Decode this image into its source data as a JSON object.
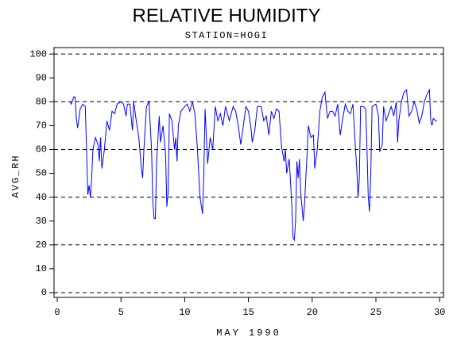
{
  "chart_data": {
    "type": "line",
    "title": "RELATIVE HUMIDITY",
    "subtitle": "STATION=HOGI",
    "y_label": "AVG_RH",
    "x_label": "MAY 1990",
    "xlim": [
      -0.25,
      30.3
    ],
    "ylim": [
      -2,
      102.7
    ],
    "xticks": [
      0,
      5,
      10,
      15,
      20,
      25,
      30
    ],
    "yticks": [
      0,
      10,
      20,
      30,
      40,
      50,
      60,
      70,
      80,
      90,
      100
    ],
    "reference_lines": [
      0,
      20,
      40,
      60,
      80,
      100
    ],
    "series": [
      {
        "color": "#0000ff",
        "x": [
          1.0,
          1.1,
          1.3,
          1.4,
          1.5,
          1.6,
          1.8,
          2.0,
          2.2,
          2.3,
          2.4,
          2.5,
          2.6,
          2.7,
          2.8,
          3.0,
          3.2,
          3.3,
          3.4,
          3.5,
          3.7,
          3.9,
          4.1,
          4.3,
          4.5,
          4.7,
          5.0,
          5.2,
          5.4,
          5.5,
          5.7,
          5.9,
          6.0,
          6.2,
          6.4,
          6.6,
          6.7,
          6.8,
          7.0,
          7.2,
          7.4,
          7.5,
          7.6,
          7.7,
          7.8,
          8.0,
          8.1,
          8.3,
          8.5,
          8.6,
          8.7,
          8.8,
          9.0,
          9.2,
          9.3,
          9.4,
          9.5,
          9.7,
          10.0,
          10.2,
          10.4,
          10.6,
          10.8,
          11.0,
          11.2,
          11.4,
          11.5,
          11.6,
          11.8,
          12.0,
          12.2,
          12.4,
          12.6,
          12.8,
          13.0,
          13.2,
          13.5,
          13.8,
          14.0,
          14.2,
          14.4,
          14.6,
          14.8,
          15.0,
          15.2,
          15.3,
          15.5,
          15.7,
          16.0,
          16.2,
          16.4,
          16.6,
          16.8,
          17.0,
          17.2,
          17.4,
          17.6,
          17.8,
          17.9,
          18.0,
          18.2,
          18.4,
          18.5,
          18.6,
          18.7,
          18.8,
          18.9,
          19.0,
          19.1,
          19.3,
          19.4,
          19.5,
          19.6,
          19.7,
          19.9,
          20.1,
          20.2,
          20.4,
          20.6,
          20.8,
          21.0,
          21.2,
          21.4,
          21.6,
          21.8,
          22.0,
          22.2,
          22.4,
          22.6,
          22.8,
          23.0,
          23.2,
          23.4,
          23.5,
          23.6,
          23.7,
          23.8,
          24.0,
          24.2,
          24.3,
          24.4,
          24.5,
          24.6,
          24.7,
          25.0,
          25.2,
          25.3,
          25.5,
          25.6,
          25.8,
          26.0,
          26.2,
          26.4,
          26.6,
          26.7,
          26.8,
          27.0,
          27.2,
          27.4,
          27.6,
          27.8,
          28.0,
          28.2,
          28.4,
          28.6,
          28.8,
          29.0,
          29.2,
          29.3,
          29.4,
          29.5,
          29.7,
          29.8
        ],
        "values": [
          80,
          79,
          82,
          82,
          73,
          69,
          77,
          79,
          78,
          60,
          41,
          45,
          40,
          48,
          60,
          65,
          62,
          55,
          65,
          52,
          60,
          72,
          68,
          76,
          75,
          79,
          80,
          79,
          74,
          79,
          79,
          68,
          80,
          72,
          65,
          52,
          48,
          60,
          78,
          80,
          60,
          38,
          31,
          31,
          55,
          74,
          63,
          70,
          58,
          36,
          42,
          75,
          72,
          60,
          65,
          55,
          70,
          76,
          78,
          79,
          76,
          80,
          75,
          60,
          40,
          33,
          50,
          77,
          54,
          65,
          60,
          78,
          72,
          75,
          70,
          78,
          72,
          78,
          76,
          70,
          62,
          70,
          78,
          76,
          69,
          63,
          68,
          78,
          78,
          72,
          74,
          66,
          76,
          73,
          77,
          76,
          61,
          55,
          60,
          50,
          56,
          37,
          23,
          22,
          30,
          55,
          48,
          56,
          42,
          30,
          37,
          48,
          58,
          70,
          65,
          66,
          52,
          60,
          76,
          82,
          84,
          73,
          76,
          76,
          74,
          79,
          66,
          73,
          79,
          76,
          75,
          79,
          60,
          52,
          40,
          48,
          78,
          78,
          77,
          60,
          40,
          34,
          50,
          78,
          79,
          74,
          59,
          62,
          78,
          72,
          75,
          78,
          74,
          80,
          63,
          72,
          80,
          84,
          85,
          74,
          76,
          80,
          77,
          71,
          74,
          80,
          83,
          85,
          72,
          70,
          73,
          72,
          72
        ]
      }
    ]
  }
}
